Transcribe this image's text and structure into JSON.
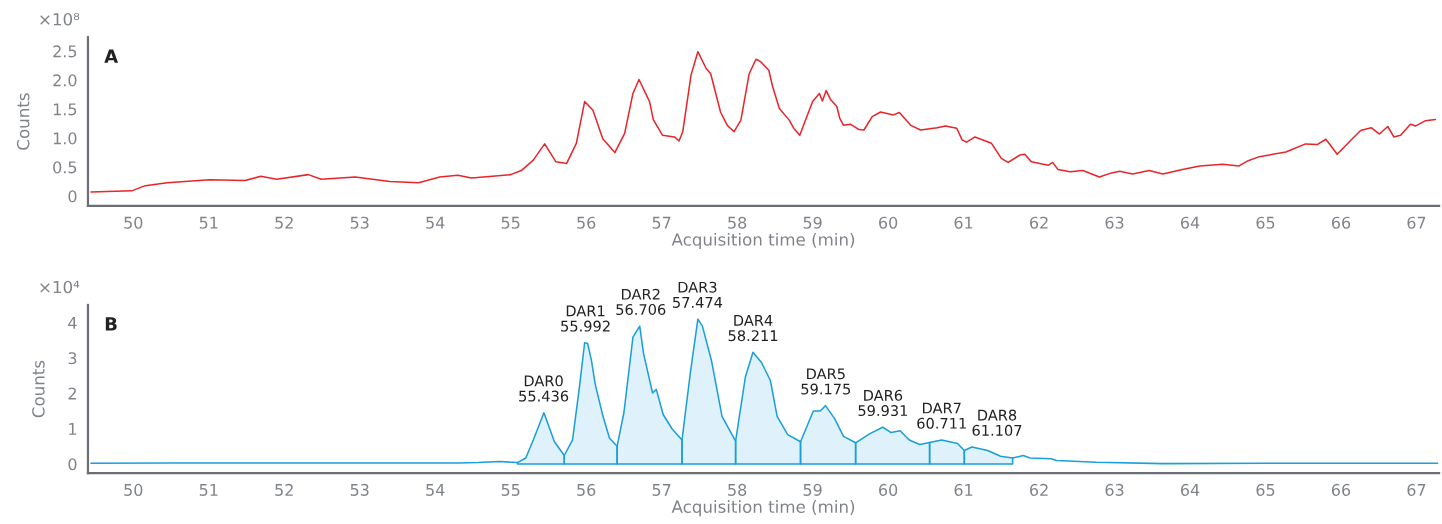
{
  "chart_data": [
    {
      "type": "line",
      "title": "A",
      "xlabel": "Acquisition time (min)",
      "ylabel": "Counts",
      "annotations": [
        "×10⁸"
      ],
      "xlim": [
        49.4,
        67.3
      ],
      "xticks": [
        50,
        51,
        52,
        53,
        54,
        55,
        56,
        57,
        58,
        59,
        60,
        61,
        62,
        63,
        64,
        65,
        66,
        67
      ],
      "ylim": [
        -0.17,
        2.74
      ],
      "yticks": [
        0,
        0.5,
        {
          "value": 1,
          "label": "1.0"
        },
        1.5,
        {
          "value": 2,
          "label": "2.0"
        },
        2.5
      ],
      "grid": false,
      "series": [
        {
          "color": "#e8262a",
          "x": [
            49.44,
            49.98,
            50.16,
            50.45,
            51.01,
            51.48,
            51.69,
            51.9,
            52.32,
            52.49,
            52.94,
            53.4,
            53.78,
            54.06,
            54.3,
            54.48,
            55.0,
            55.14,
            55.3,
            55.45,
            55.6,
            55.74,
            55.87,
            55.98,
            56.09,
            56.22,
            56.38,
            56.51,
            56.62,
            56.7,
            56.84,
            56.89,
            57.01,
            57.17,
            57.23,
            57.28,
            57.39,
            57.48,
            57.59,
            57.65,
            57.78,
            57.87,
            57.96,
            58.05,
            58.16,
            58.25,
            58.31,
            58.42,
            58.47,
            58.56,
            58.69,
            58.75,
            58.83,
            59.0,
            59.09,
            59.13,
            59.18,
            59.24,
            59.32,
            59.36,
            59.41,
            59.5,
            59.61,
            59.68,
            59.79,
            59.9,
            60.07,
            60.15,
            60.3,
            60.43,
            60.65,
            60.76,
            60.91,
            60.98,
            61.04,
            61.15,
            61.37,
            61.5,
            61.59,
            61.75,
            61.81,
            61.9,
            62.12,
            62.18,
            62.25,
            62.41,
            62.58,
            62.8,
            62.96,
            63.07,
            63.24,
            63.46,
            63.64,
            63.9,
            64.13,
            64.43,
            64.65,
            64.77,
            64.92,
            65.27,
            65.53,
            65.69,
            65.8,
            65.95,
            66.15,
            66.26,
            66.4,
            66.51,
            66.62,
            66.7,
            66.79,
            66.92,
            66.99,
            67.12,
            67.25
          ],
          "values": [
            0.07,
            0.09,
            0.18,
            0.23,
            0.28,
            0.27,
            0.34,
            0.29,
            0.37,
            0.29,
            0.33,
            0.25,
            0.23,
            0.33,
            0.36,
            0.31,
            0.37,
            0.44,
            0.62,
            0.9,
            0.59,
            0.56,
            0.91,
            1.63,
            1.48,
            0.99,
            0.75,
            1.08,
            1.77,
            2.01,
            1.63,
            1.32,
            1.05,
            1.02,
            0.95,
            1.11,
            2.09,
            2.49,
            2.2,
            2.11,
            1.45,
            1.22,
            1.11,
            1.31,
            2.11,
            2.36,
            2.32,
            2.17,
            1.89,
            1.51,
            1.31,
            1.17,
            1.05,
            1.63,
            1.77,
            1.64,
            1.82,
            1.66,
            1.55,
            1.34,
            1.22,
            1.24,
            1.15,
            1.14,
            1.37,
            1.45,
            1.4,
            1.44,
            1.22,
            1.14,
            1.18,
            1.21,
            1.17,
            0.97,
            0.93,
            1.02,
            0.91,
            0.65,
            0.58,
            0.71,
            0.72,
            0.59,
            0.53,
            0.58,
            0.46,
            0.42,
            0.44,
            0.33,
            0.4,
            0.43,
            0.38,
            0.44,
            0.38,
            0.46,
            0.52,
            0.55,
            0.52,
            0.61,
            0.68,
            0.76,
            0.9,
            0.89,
            0.98,
            0.72,
            0.99,
            1.13,
            1.18,
            1.07,
            1.2,
            1.02,
            1.05,
            1.24,
            1.21,
            1.3,
            1.32
          ]
        }
      ]
    },
    {
      "type": "line",
      "title": "B",
      "xlabel": "Acquisition time (min)",
      "ylabel": "Counts",
      "annotations": [
        "×10⁴",
        {
          "text": "DAR0\n55.436",
          "x": 55.436,
          "y": 1.45
        },
        {
          "text": "DAR1\n55.992",
          "x": 55.992,
          "y": 3.43
        },
        {
          "text": "DAR2\n56.706",
          "x": 56.706,
          "y": 3.9
        },
        {
          "text": "DAR3\n57.474",
          "x": 57.474,
          "y": 4.1
        },
        {
          "text": "DAR4\n58.211",
          "x": 58.211,
          "y": 3.16
        },
        {
          "text": "DAR5\n59.175",
          "x": 59.175,
          "y": 1.65
        },
        {
          "text": "DAR6\n59.931",
          "x": 59.931,
          "y": 1.04
        },
        {
          "text": "DAR7\n60.711",
          "x": 60.711,
          "y": 0.68
        },
        {
          "text": "DAR8\n61.107",
          "x": 61.107,
          "y": 0.48
        }
      ],
      "xlim": [
        49.4,
        67.3
      ],
      "xticks": [
        50,
        51,
        52,
        53,
        54,
        55,
        56,
        57,
        58,
        59,
        60,
        61,
        62,
        63,
        64,
        65,
        66,
        67
      ],
      "ylim": [
        -0.26,
        4.5
      ],
      "yticks": [
        0,
        1,
        2,
        3,
        4
      ],
      "grid": false,
      "series": [
        {
          "type": "line",
          "color": "#1a9fd9",
          "x": [
            49.44,
            50.5,
            51.5,
            52.5,
            53.5,
            54.3,
            54.57,
            54.85,
            55.09
          ],
          "values": [
            0.02,
            0.03,
            0.03,
            0.03,
            0.03,
            0.03,
            0.04,
            0.07,
            0.04
          ]
        },
        {
          "type": "area",
          "color": "#1a9fd9",
          "x": [
            55.09,
            55.2,
            55.3,
            55.44,
            55.58,
            55.71
          ],
          "values": [
            0.04,
            0.17,
            0.68,
            1.45,
            0.63,
            0.24
          ]
        },
        {
          "type": "area",
          "color": "#1a9fd9",
          "x": [
            55.71,
            55.82,
            55.91,
            55.98,
            56.02,
            56.07,
            56.12,
            56.22,
            56.31,
            56.41
          ],
          "values": [
            0.24,
            0.68,
            2.16,
            3.43,
            3.41,
            2.93,
            2.26,
            1.37,
            0.73,
            0.5
          ]
        },
        {
          "type": "area",
          "color": "#1a9fd9",
          "x": [
            56.41,
            56.5,
            56.62,
            56.71,
            56.76,
            56.88,
            56.93,
            57.02,
            57.14,
            57.27
          ],
          "values": [
            0.5,
            1.45,
            3.59,
            3.9,
            3.13,
            2.01,
            2.11,
            1.4,
            0.99,
            0.68
          ]
        },
        {
          "type": "area",
          "color": "#1a9fd9",
          "x": [
            57.27,
            57.38,
            57.48,
            57.54,
            57.66,
            57.8,
            57.98
          ],
          "values": [
            0.68,
            2.57,
            4.1,
            3.9,
            2.93,
            1.35,
            0.65
          ]
        },
        {
          "type": "area",
          "color": "#1a9fd9",
          "x": [
            57.98,
            58.11,
            58.21,
            58.32,
            58.44,
            58.53,
            58.67,
            58.84
          ],
          "values": [
            0.65,
            2.47,
            3.16,
            2.88,
            2.37,
            1.35,
            0.83,
            0.63
          ]
        },
        {
          "type": "area",
          "color": "#1a9fd9",
          "x": [
            58.84,
            59.01,
            59.1,
            59.17,
            59.29,
            59.41,
            59.57
          ],
          "values": [
            0.63,
            1.5,
            1.5,
            1.65,
            1.29,
            0.78,
            0.6
          ]
        },
        {
          "type": "area",
          "color": "#1a9fd9",
          "x": [
            59.57,
            59.76,
            59.93,
            60.04,
            60.16,
            60.28,
            60.42,
            60.55
          ],
          "values": [
            0.6,
            0.86,
            1.04,
            0.89,
            0.94,
            0.68,
            0.55,
            0.61
          ]
        },
        {
          "type": "area",
          "color": "#1a9fd9",
          "x": [
            60.55,
            60.71,
            60.92,
            61.01
          ],
          "values": [
            0.61,
            0.68,
            0.58,
            0.38
          ]
        },
        {
          "type": "area",
          "color": "#1a9fd9",
          "x": [
            61.01,
            61.11,
            61.32,
            61.49,
            61.65
          ],
          "values": [
            0.38,
            0.48,
            0.38,
            0.22,
            0.17
          ]
        },
        {
          "type": "line",
          "color": "#1a9fd9",
          "x": [
            61.65,
            61.79,
            61.88,
            62.16,
            62.23,
            62.76,
            63.64,
            65.0,
            66.5,
            67.28
          ],
          "values": [
            0.17,
            0.24,
            0.17,
            0.15,
            0.1,
            0.05,
            0.01,
            0.02,
            0.02,
            0.02
          ]
        }
      ]
    }
  ]
}
